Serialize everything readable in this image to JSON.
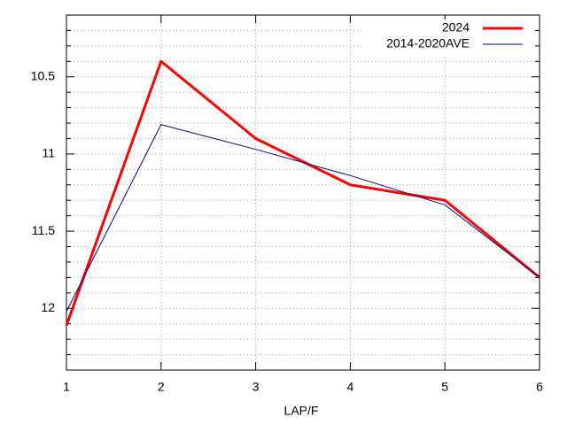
{
  "chart_data": {
    "type": "line",
    "xlabel": "LAP/F",
    "x": [
      1,
      2,
      3,
      4,
      5,
      6
    ],
    "series": [
      {
        "name": "2024",
        "color": "#ff0000",
        "width": 3,
        "values": [
          12.11,
          10.4,
          10.9,
          11.2,
          11.3,
          11.8
        ]
      },
      {
        "name": "2014-2020AVE",
        "color": "#000080",
        "width": 1,
        "values": [
          12.02,
          10.81,
          10.97,
          11.14,
          11.33,
          11.8
        ]
      }
    ],
    "xlim": [
      1,
      6
    ],
    "xticks": [
      1,
      2,
      3,
      4,
      5,
      6
    ],
    "ylim": [
      10.1,
      12.4
    ],
    "y_reverse": true,
    "yticks": [
      10.5,
      11,
      11.5,
      12
    ],
    "yminorticks": [
      10.2,
      10.3,
      10.4,
      10.6,
      10.7,
      10.8,
      10.9,
      11.1,
      11.2,
      11.3,
      11.4,
      11.6,
      11.7,
      11.8,
      11.9,
      12.1,
      12.2,
      12.3
    ],
    "grid": true,
    "legend": "top-right"
  }
}
